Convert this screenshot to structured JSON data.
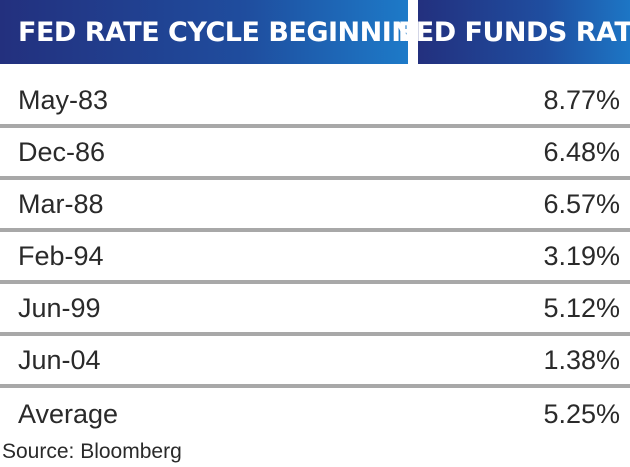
{
  "header": {
    "left_title": "FED RATE CYCLE BEGINNING",
    "right_title": "FED FUNDS RATE"
  },
  "chart_data": {
    "type": "table",
    "columns": [
      "FED RATE CYCLE BEGINNING",
      "FED FUNDS RATE"
    ],
    "rows": [
      {
        "date": "May-83",
        "rate": "8.77%"
      },
      {
        "date": "Dec-86",
        "rate": "6.48%"
      },
      {
        "date": "Mar-88",
        "rate": "6.57%"
      },
      {
        "date": "Feb-94",
        "rate": "3.19%"
      },
      {
        "date": "Jun-99",
        "rate": "5.12%"
      },
      {
        "date": "Jun-04",
        "rate": "1.38%"
      }
    ],
    "summary": {
      "label": "Average",
      "rate": "5.25%"
    },
    "values": [
      8.77,
      6.48,
      6.57,
      3.19,
      5.12,
      1.38
    ],
    "average": 5.25
  },
  "source": "Source: Bloomberg",
  "colors": {
    "header_dark": "#23307e",
    "header_light": "#1d7ac8",
    "divider": "#a8a8a8"
  }
}
